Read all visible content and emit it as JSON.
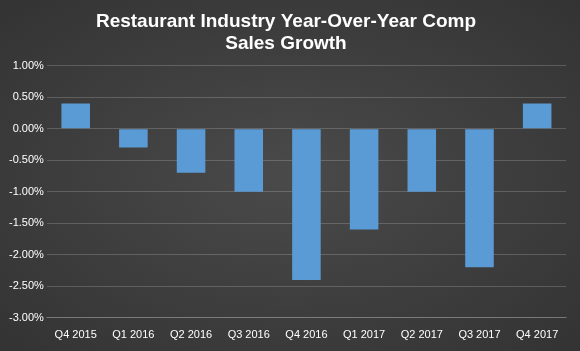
{
  "chart_data": {
    "type": "bar",
    "title": [
      "Restaurant Industry Year-Over-Year Comp",
      "Sales Growth"
    ],
    "categories": [
      "Q4 2015",
      "Q1 2016",
      "Q2 2016",
      "Q3 2016",
      "Q4 2016",
      "Q1 2017",
      "Q2 2017",
      "Q3 2017",
      "Q4 2017"
    ],
    "values": [
      0.4,
      -0.3,
      -0.7,
      -1.0,
      -2.4,
      -1.6,
      -1.0,
      -2.2,
      0.4
    ],
    "color": "#5b9bd5",
    "ylim": [
      -3,
      1
    ],
    "yticks": [
      {
        "value": -3,
        "label": "-3.00%"
      },
      {
        "value": -2.5,
        "label": "-2.50%"
      },
      {
        "value": -2,
        "label": "-2.00%"
      },
      {
        "value": -1.5,
        "label": "-1.50%"
      },
      {
        "value": -1,
        "label": "-1.00%"
      },
      {
        "value": -0.5,
        "label": "-0.50%"
      },
      {
        "value": 0,
        "label": "0.00%"
      },
      {
        "value": 0.5,
        "label": "0.50%"
      },
      {
        "value": 1,
        "label": "1.00%"
      }
    ],
    "grid": true
  }
}
